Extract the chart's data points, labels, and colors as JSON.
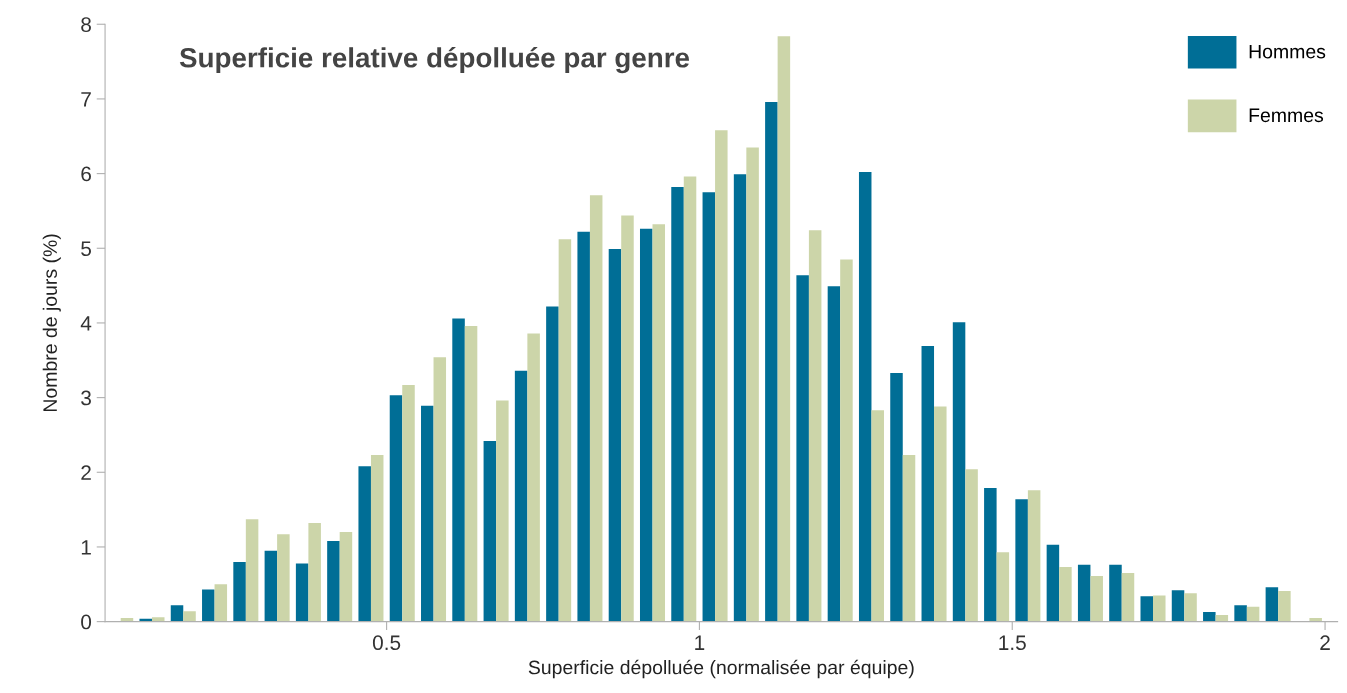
{
  "chart_data": {
    "type": "histogram",
    "title": "Superficie relative dépolluée par genre",
    "xlabel": "Superficie dépolluée (normalisée par équipe)",
    "ylabel": "Nombre de jours (%)",
    "bins": [
      0.05,
      0.1,
      0.15,
      0.2,
      0.25,
      0.3,
      0.35,
      0.4,
      0.45,
      0.5,
      0.55,
      0.6,
      0.65,
      0.7,
      0.75,
      0.8,
      0.85,
      0.9,
      0.95,
      1.0,
      1.05,
      1.1,
      1.15,
      1.2,
      1.25,
      1.3,
      1.35,
      1.4,
      1.45,
      1.5,
      1.55,
      1.6,
      1.65,
      1.7,
      1.75,
      1.8,
      1.85,
      1.9,
      1.95,
      2.0
    ],
    "series": [
      {
        "name": "Hommes",
        "color": "#006e96",
        "values": [
          0,
          0.04,
          0.22,
          0.43,
          0.8,
          0.95,
          0.78,
          1.08,
          2.08,
          3.03,
          2.89,
          4.06,
          2.42,
          3.36,
          4.22,
          5.22,
          4.99,
          5.26,
          5.82,
          5.75,
          5.99,
          6.96,
          4.64,
          4.49,
          6.02,
          3.33,
          3.69,
          4.01,
          1.79,
          1.64,
          1.03,
          0.76,
          0.76,
          0.34,
          0.42,
          0.13,
          0.22,
          0.46,
          0
        ]
      },
      {
        "name": "Femmes",
        "color": "#ccd5a9",
        "values": [
          0.05,
          0.06,
          0.14,
          0.5,
          1.37,
          1.17,
          1.32,
          1.2,
          2.23,
          3.17,
          3.54,
          3.96,
          2.96,
          3.86,
          5.12,
          5.71,
          5.44,
          5.32,
          5.96,
          6.58,
          6.35,
          7.84,
          5.24,
          4.85,
          2.83,
          2.23,
          2.88,
          2.04,
          0.93,
          1.76,
          0.73,
          0.61,
          0.65,
          0.35,
          0.38,
          0.09,
          0.2,
          0.41,
          0.05
        ]
      }
    ],
    "xlim": [
      0.05,
      2.02
    ],
    "xticks": [
      0.5,
      1,
      1.5,
      2
    ],
    "ylim": [
      0,
      8
    ],
    "yticks": [
      0,
      1,
      2,
      3,
      4,
      5,
      6,
      7,
      8
    ],
    "grid": false,
    "legend": "top right"
  }
}
